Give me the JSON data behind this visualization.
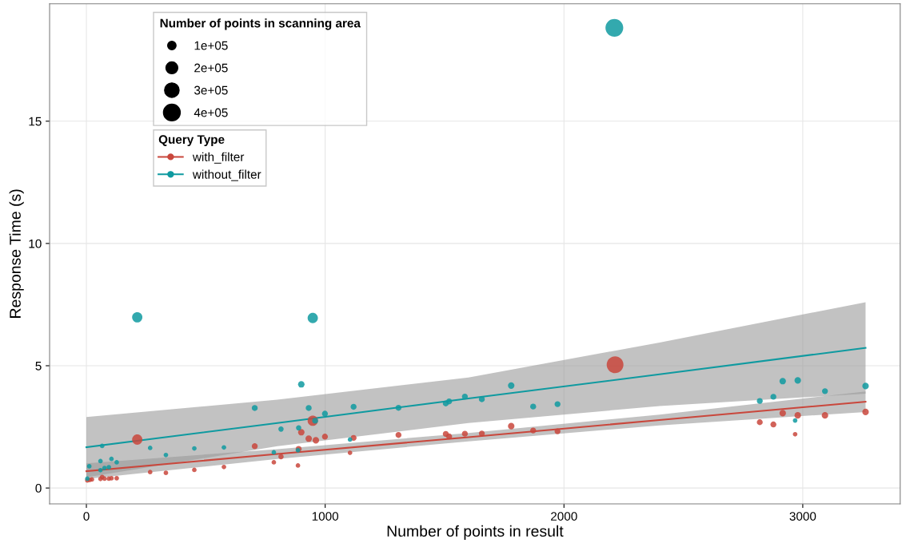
{
  "chart_data": {
    "type": "bubble",
    "xlabel": "Number of points in result",
    "ylabel": "Response Time (s)",
    "legend_title": "Query Type",
    "annotations": [
      "Number of points in scanning area"
    ],
    "size_legend": [
      {
        "value": 100000,
        "label": "1e+05"
      },
      {
        "value": 200000,
        "label": "2e+05"
      },
      {
        "value": 300000,
        "label": "3e+05"
      },
      {
        "value": 400000,
        "label": "4e+05"
      }
    ],
    "xlim": [
      -154,
      3408
    ],
    "ylim": [
      -0.65,
      19.8
    ],
    "xticks": [
      0,
      1000,
      2000,
      3000
    ],
    "yticks": [
      0,
      5,
      10,
      15
    ],
    "grid": true,
    "legend": "top left",
    "marker": "circle",
    "series": [
      {
        "name": "with_filter",
        "color": "#c9473c",
        "x": [
          213,
          948,
          900,
          931,
          961,
          999,
          705,
          889,
          815,
          785,
          886,
          576,
          452,
          333,
          267,
          66,
          59,
          76,
          94,
          105,
          127,
          4,
          14,
          23,
          1119,
          1307,
          1505,
          1519,
          1585,
          1656,
          1779,
          1871,
          1973,
          1104,
          2214,
          2820,
          2877,
          2916,
          2979,
          3093,
          3263,
          2968
        ],
        "values": [
          1.98,
          2.75,
          2.28,
          2.02,
          1.95,
          2.1,
          1.71,
          1.6,
          1.28,
          1.05,
          0.92,
          0.86,
          0.74,
          0.62,
          0.65,
          0.45,
          0.37,
          0.38,
          0.38,
          0.4,
          0.4,
          0.31,
          0.33,
          0.35,
          2.05,
          2.17,
          2.21,
          2.11,
          2.22,
          2.23,
          2.53,
          2.35,
          2.32,
          1.44,
          5.04,
          2.69,
          2.6,
          3.06,
          2.97,
          2.97,
          3.11,
          2.2
        ],
        "sizes": [
          150000,
          150000,
          60000,
          60000,
          60000,
          50000,
          50000,
          50000,
          40000,
          30000,
          30000,
          30000,
          30000,
          30000,
          30000,
          30000,
          30000,
          30000,
          30000,
          30000,
          30000,
          30000,
          30000,
          30000,
          50000,
          50000,
          50000,
          50000,
          50000,
          50000,
          60000,
          50000,
          50000,
          30000,
          400000,
          50000,
          50000,
          60000,
          60000,
          60000,
          60000,
          30000
        ]
      },
      {
        "name": "without_filter",
        "color": "#0f9aa0",
        "x": [
          213,
          948,
          900,
          705,
          931,
          999,
          815,
          889,
          958,
          66,
          267,
          452,
          576,
          333,
          12,
          59,
          105,
          127,
          76,
          94,
          59,
          785,
          886,
          4,
          1119,
          1307,
          1505,
          1519,
          1585,
          1656,
          1779,
          1871,
          1973,
          1104,
          2211,
          2820,
          2877,
          2916,
          2979,
          3093,
          3263,
          2968
        ],
        "values": [
          6.98,
          6.95,
          4.24,
          3.27,
          3.27,
          3.04,
          2.41,
          2.46,
          2.75,
          1.72,
          1.64,
          1.62,
          1.66,
          1.35,
          0.89,
          1.1,
          1.19,
          1.05,
          0.82,
          0.85,
          0.73,
          1.46,
          1.54,
          0.38,
          3.32,
          3.28,
          3.46,
          3.54,
          3.74,
          3.63,
          4.19,
          3.33,
          3.43,
          1.98,
          18.82,
          3.56,
          3.73,
          4.37,
          4.4,
          3.96,
          4.17,
          2.76
        ],
        "sizes": [
          150000,
          150000,
          60000,
          50000,
          50000,
          50000,
          40000,
          40000,
          50000,
          30000,
          30000,
          30000,
          30000,
          30000,
          30000,
          30000,
          30000,
          30000,
          30000,
          30000,
          30000,
          30000,
          30000,
          30000,
          50000,
          50000,
          50000,
          50000,
          50000,
          50000,
          60000,
          50000,
          50000,
          30000,
          450000,
          50000,
          50000,
          60000,
          60000,
          50000,
          60000,
          30000
        ]
      },
      {
        "type": "line",
        "marker": "none",
        "color": "#c9473c",
        "x": [
          0,
          800,
          1600,
          2400,
          3263
        ],
        "values": [
          0.69,
          1.39,
          2.08,
          2.78,
          3.53
        ],
        "lower": [
          0.37,
          1.19,
          1.91,
          2.56,
          3.11
        ],
        "upper": [
          1.01,
          1.59,
          2.25,
          3.0,
          3.95
        ]
      },
      {
        "type": "line",
        "marker": "none",
        "color": "#0f9aa0",
        "x": [
          0,
          800,
          1600,
          2400,
          3263
        ],
        "values": [
          1.67,
          2.66,
          3.66,
          4.65,
          5.73
        ],
        "lower": [
          0.44,
          1.71,
          2.66,
          3.35,
          3.86
        ],
        "upper": [
          2.9,
          3.61,
          4.52,
          5.95,
          7.6
        ]
      }
    ]
  }
}
